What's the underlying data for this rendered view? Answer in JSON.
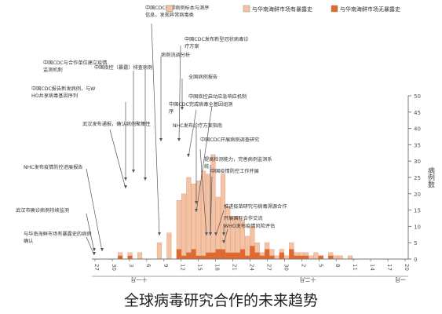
{
  "caption": "全球病毒研究合作的未来趋势",
  "colors": {
    "series1": "#f6c2a4",
    "series2": "#e2692b",
    "stroke": "#6b6b6b"
  },
  "chart_data": {
    "type": "bar",
    "stacked": true,
    "legend_position": "top-right",
    "series": [
      {
        "name": "与华南海鲜市场有暴露史",
        "color": "#f6c2a4"
      },
      {
        "name": "与华南海鲜市场无暴露史",
        "color": "#e2692b"
      }
    ],
    "ylabel": "病例数",
    "ylim": [
      0,
      50
    ],
    "yticks": [
      0,
      5,
      10,
      15,
      20,
      25,
      30,
      35,
      40,
      45,
      50
    ],
    "xtick_labels": [
      "20",
      "23",
      "26",
      "29",
      "2",
      "5",
      "8",
      "11",
      "14",
      "17",
      "20",
      "23",
      "26",
      "29",
      "2",
      "5",
      "8",
      "11",
      "14",
      "17",
      "20",
      "23",
      "26",
      "29",
      "1",
      "4",
      "7",
      "10",
      "13",
      "16",
      "19",
      "22",
      "25",
      "28",
      "31",
      "3",
      "6",
      "9",
      "12",
      "15",
      "18",
      "21",
      "24",
      "27",
      "30"
    ],
    "xtick_display": [
      "20",
      "",
      "",
      "",
      "",
      "",
      "",
      "",
      "",
      "",
      "",
      "",
      "",
      "",
      "",
      "",
      "",
      "",
      "",
      "",
      "",
      "",
      "",
      "",
      "",
      "",
      "",
      "",
      "",
      "",
      "",
      "",
      "",
      "",
      "",
      "",
      "",
      "",
      "",
      "",
      "",
      "",
      "",
      "",
      ""
    ],
    "month_labels": [
      "十一月",
      "十二月",
      "一月"
    ],
    "values_s1": [
      0,
      0,
      0,
      0,
      0,
      1,
      0,
      1,
      0,
      2,
      0,
      0,
      0,
      5,
      0,
      8,
      0,
      15,
      19,
      23,
      20,
      23,
      26,
      24,
      30,
      16,
      23,
      14,
      11,
      11,
      9,
      6,
      6,
      3,
      1,
      2,
      2,
      1,
      1,
      1,
      2,
      1,
      1,
      1,
      1,
      2,
      0,
      0,
      1,
      1,
      1,
      0,
      1,
      0,
      0,
      0,
      0,
      0,
      0,
      0,
      0,
      0,
      0,
      0
    ],
    "values_s2": [
      0,
      0,
      0,
      0,
      0,
      1,
      0,
      1,
      0,
      0,
      0,
      0,
      0,
      0,
      0,
      0,
      0,
      3,
      1,
      2,
      3,
      1,
      1,
      2,
      2,
      3,
      3,
      2,
      2,
      2,
      3,
      1,
      4,
      2,
      1,
      3,
      1,
      0,
      2,
      0,
      3,
      1,
      1,
      1,
      0,
      0,
      1,
      0,
      1,
      0,
      0,
      0,
      0,
      0,
      0,
      0,
      0,
      0,
      0,
      0,
      0,
      0,
      0,
      0
    ],
    "x_axis_ticks": [
      "20",
      "17",
      "14",
      "11",
      "8",
      "5",
      "2",
      "30",
      "27",
      "24",
      "21",
      "18",
      "15",
      "12",
      "9",
      "6",
      "3",
      "30",
      "27"
    ],
    "annotations": [
      "中国CDC获得病例标本与测序信息，发现异常病毒类",
      "中国CDC发布新型冠状病毒诊疗方案",
      "病例流调分析",
      "中国CDC与合作单位建立疫情监测机制",
      "中国疾控（暴露）排查病例",
      "全国病例报告",
      "中国CDC报告新发病例，与WHO共享病毒基因序列",
      "武汉发布通报，确认病例聚集性",
      "中国疾控启动应急响应机制",
      "中国CDC完成病毒全基因组测序",
      "NHC发布诊疗方案指南",
      "中国CDC开展病例调查研究",
      "提高检测能力，完善病例监测系统",
      "中国疫情防控工作开展",
      "推进疫苗研究与病毒溯源合作",
      "开展国际合作交流",
      "WHO发布疫情风险评估",
      "NHC发布疫情防控进展报告",
      "武汉市确诊病例持续监测",
      "与华南海鲜市场有暴露史的病例确认"
    ]
  }
}
